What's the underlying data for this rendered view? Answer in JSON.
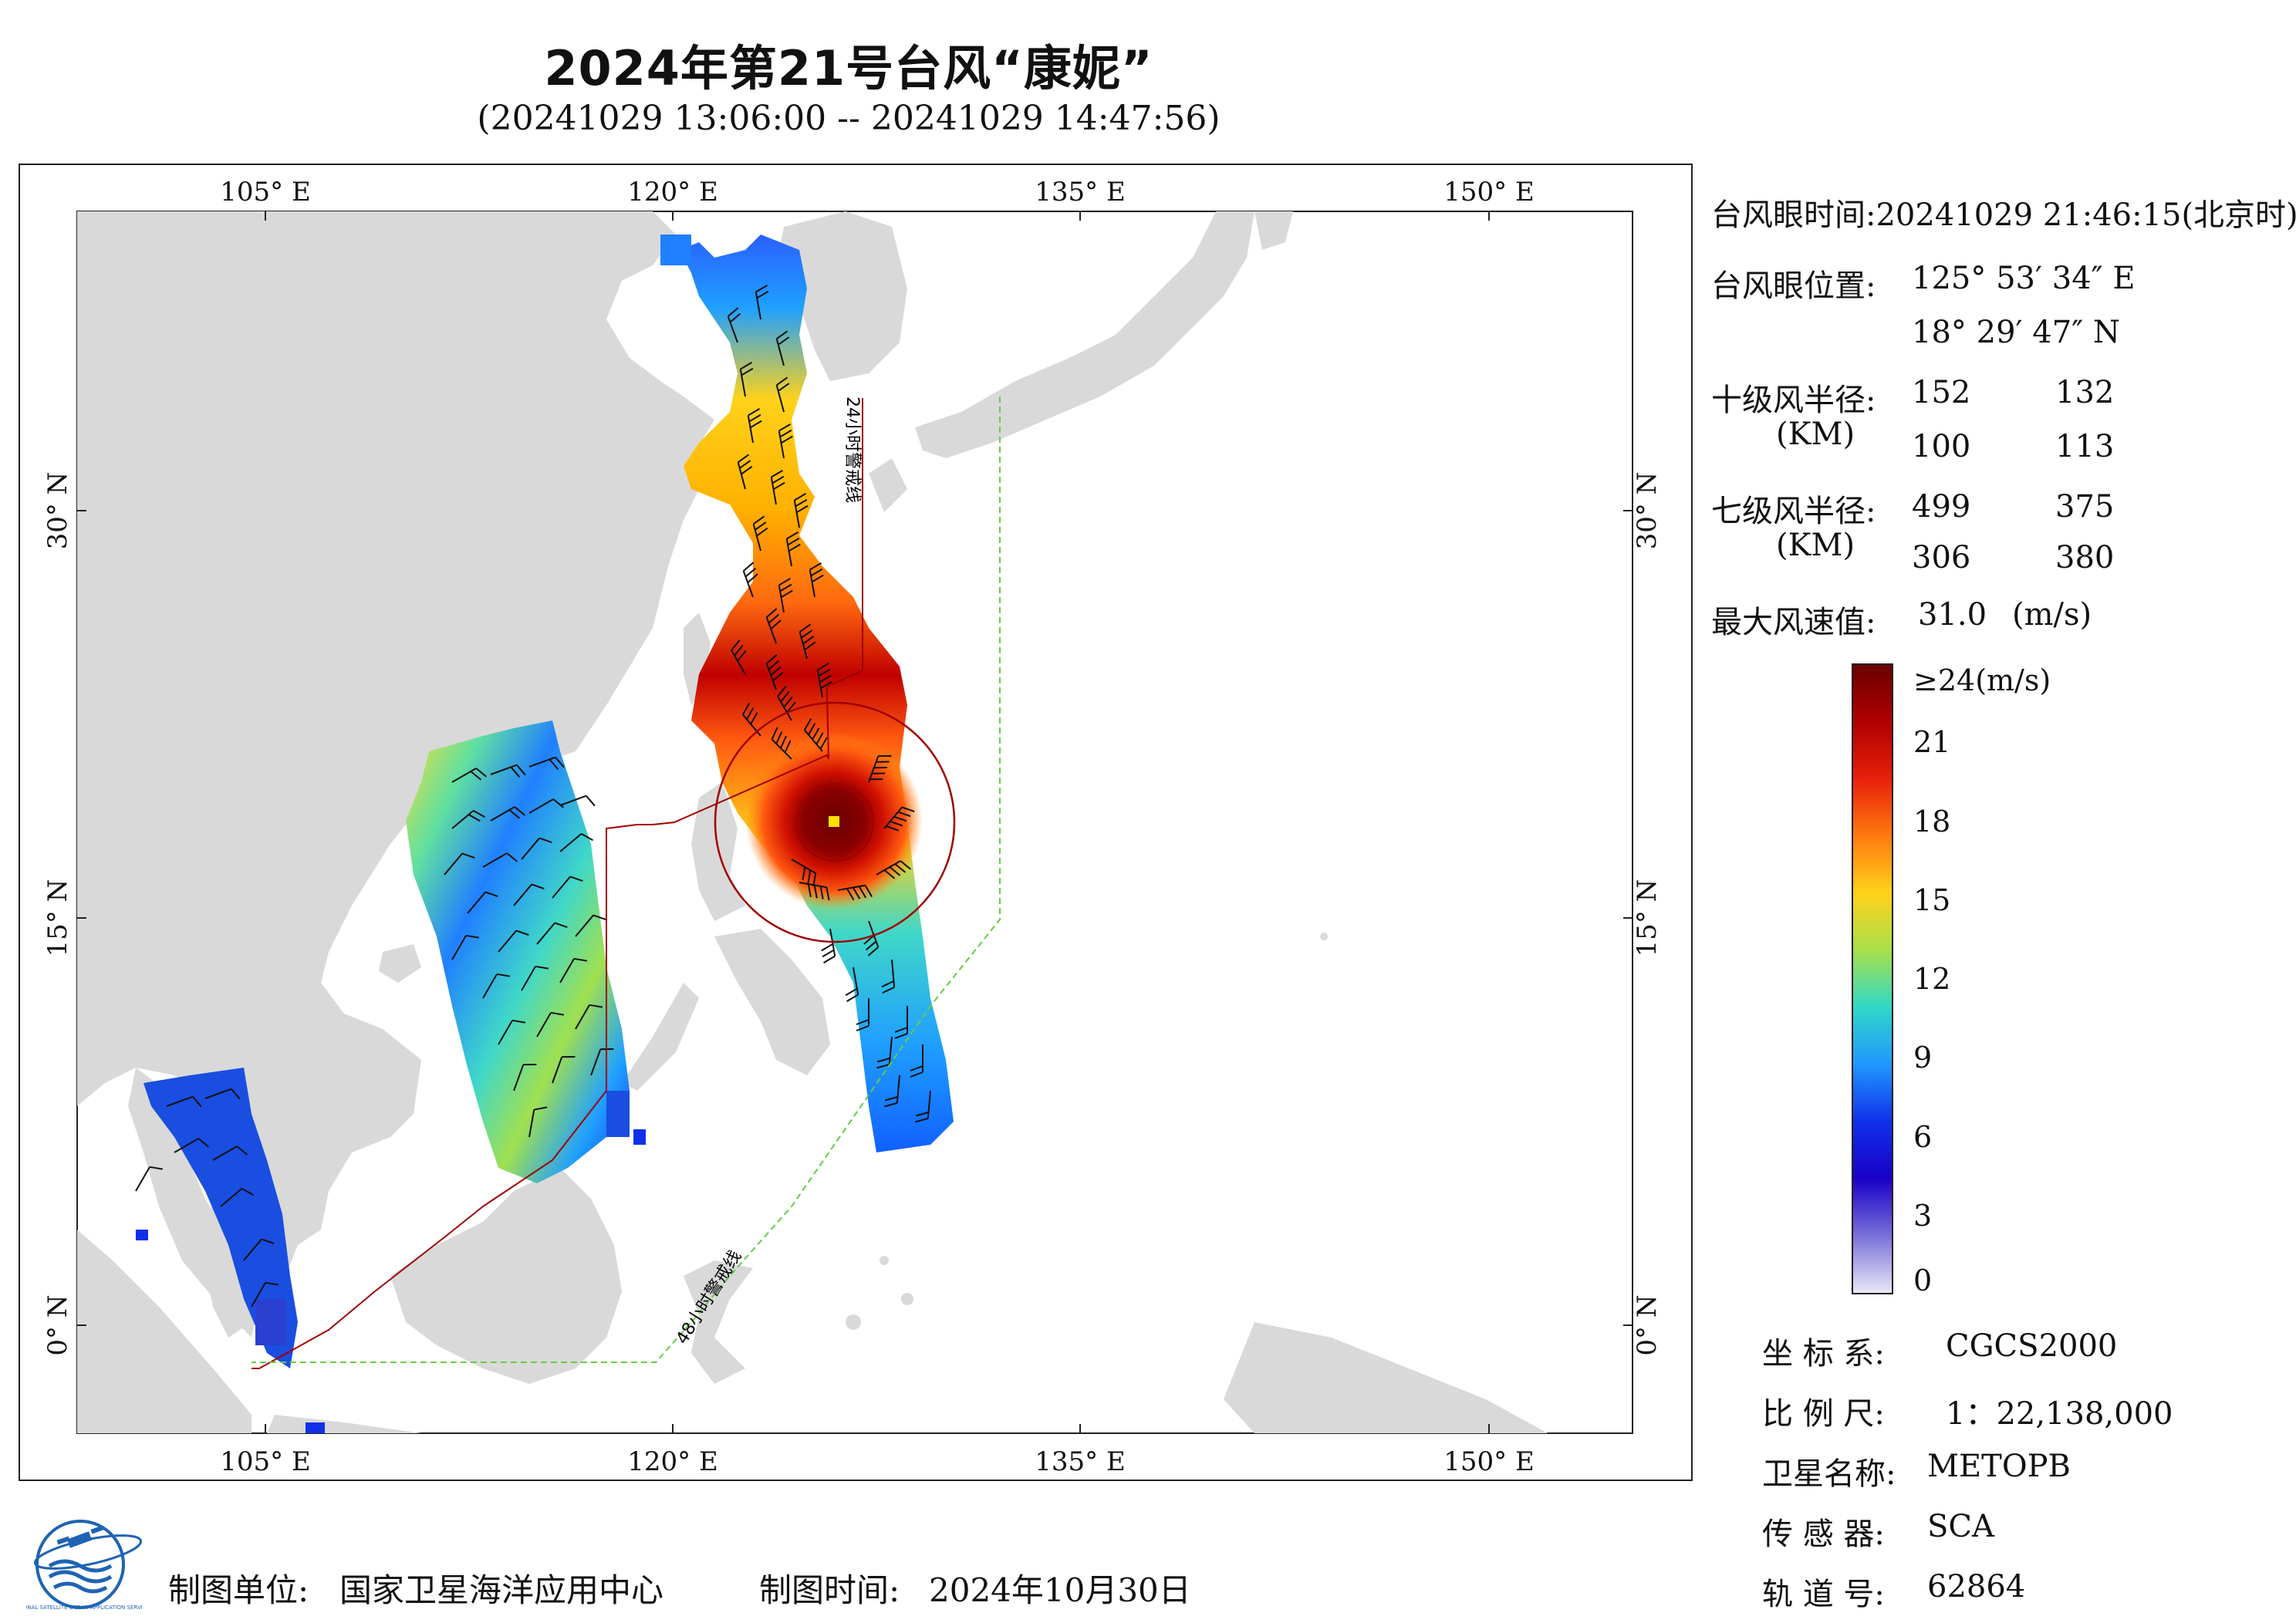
{
  "title": "2024年第21号台风“康妮”",
  "subtitle": "(20241029 13:06:00 -- 20241029 14:47:56)",
  "map": {
    "lon_ticks": [
      "105° E",
      "120° E",
      "135° E",
      "150° E"
    ],
    "lat_ticks": [
      "30° N",
      "15° N",
      "0° N"
    ],
    "warning_24h": "24小时警戒线",
    "warning_48h": "48小时警戒线",
    "colors": {
      "land": "#d9d9d9",
      "sea": "#ffffff",
      "warning_24h": "#a00000",
      "warning_48h": "#66cc44"
    }
  },
  "info": {
    "eye_time_label": "台风眼时间:",
    "eye_time_value": "20241029 21:46:15(北京时)",
    "eye_pos_label": "台风眼位置:",
    "eye_lon": "125° 53′ 34″ E",
    "eye_lat": "18° 29′ 47″ N",
    "r10_label": "十级风半径:",
    "r10_unit": "(KM)",
    "r10_values": [
      "152",
      "132",
      "100",
      "113"
    ],
    "r7_label": "七级风半径:",
    "r7_unit": "(KM)",
    "r7_values": [
      "499",
      "375",
      "306",
      "380"
    ],
    "max_wind_label": "最大风速值:",
    "max_wind_value": "31.0",
    "max_wind_unit": "(m/s)"
  },
  "colorbar": {
    "labels": [
      "≥24(m/s)",
      "21",
      "18",
      "15",
      "12",
      "9",
      "6",
      "3",
      "0"
    ],
    "values": [
      24,
      21,
      18,
      15,
      12,
      9,
      6,
      3,
      0
    ],
    "stops": [
      "#6b0000",
      "#b00000",
      "#e8200a",
      "#ff7a10",
      "#ffd21a",
      "#a8e04a",
      "#30d8c8",
      "#2098ff",
      "#1030e8",
      "#1a00c8",
      "#7a70d8",
      "#e8e8f8"
    ]
  },
  "meta": {
    "coord_label": "坐 标 系:",
    "coord_value": "CGCS2000",
    "scale_label": "比 例 尺:",
    "scale_value": "1：22,138,000",
    "satellite_label": "卫星名称:",
    "satellite_value": "METOPB",
    "sensor_label": "传 感 器:",
    "sensor_value": "SCA",
    "orbit_label": "轨 道 号:",
    "orbit_value": "62864"
  },
  "footer": {
    "unit_label": "制图单位:",
    "unit_value": "国家卫星海洋应用中心",
    "time_label": "制图时间:",
    "time_value": "2024年10月30日"
  },
  "logo_text": "NATIONAL SATELLITE OCEAN APPLICATION SERVICE"
}
